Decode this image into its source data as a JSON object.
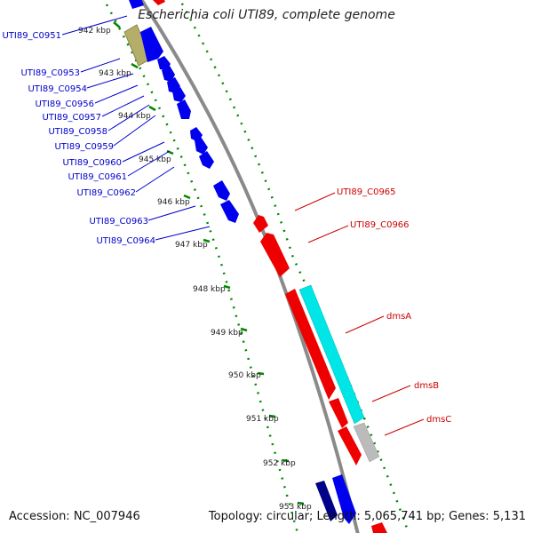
{
  "title": "Escherichia coli UTI89, complete genome",
  "footer": {
    "accession": "Accession: NC_007946",
    "summary": "Topology: circular; Length: 5,065,741 bp; Genes: 5,131"
  },
  "colors": {
    "forward_gene": "#0000ee",
    "reverse_gene": "#ee0000",
    "cyan_feature": "#00e5e5",
    "gray_feature": "#bbbbbb",
    "olive_feature": "#b5ad6a",
    "tick": "#008800",
    "backbone": "#8a8a8a",
    "left_label": "#0000cc",
    "right_label": "#cc0000"
  },
  "kbp_ticks": [
    "942 kbp",
    "943 kbp",
    "944 kbp",
    "945 kbp",
    "946 kbp",
    "947 kbp",
    "948 kbp",
    "949 kbp",
    "950 kbp",
    "951 kbp",
    "952 kbp",
    "953 kbp"
  ],
  "left_labels": [
    "UTI89_C0951",
    "UTI89_C0953",
    "UTI89_C0954",
    "UTI89_C0956",
    "UTI89_C0957",
    "UTI89_C0958",
    "UTI89_C0959",
    "UTI89_C0960",
    "UTI89_C0961",
    "UTI89_C0962",
    "UTI89_C0963",
    "UTI89_C0964"
  ],
  "right_labels": [
    "UTI89_C0965",
    "UTI89_C0966",
    "dmsA",
    "dmsB",
    "dmsC"
  ]
}
